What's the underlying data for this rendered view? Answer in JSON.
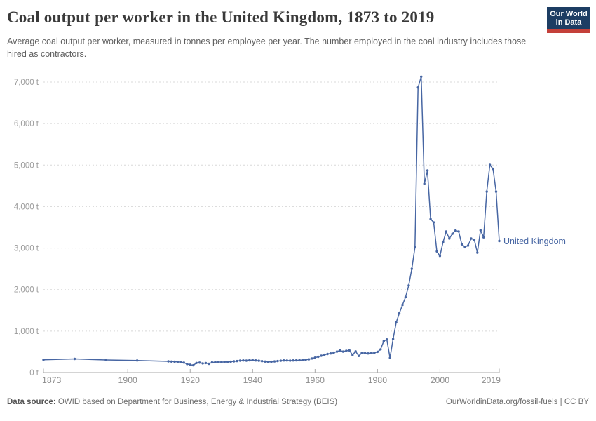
{
  "header": {
    "title": "Coal output per worker in the United Kingdom, 1873 to 2019",
    "subtitle": "Average coal output per worker, measured in tonnes per employee per year. The number employed in the coal industry includes those hired as contractors.",
    "logo": {
      "line1": "Our World",
      "line2": "in Data",
      "bg_color": "#1d3d63",
      "accent_color": "#c4403a"
    }
  },
  "footer": {
    "source_label": "Data source:",
    "source_text": " OWID based on Department for Business, Energy & Industrial Strategy (BEIS)",
    "link_text": "OurWorldinData.org/fossil-fuels",
    "license_text": " | CC BY"
  },
  "chart_data": {
    "type": "line",
    "title": "Coal output per worker in the United Kingdom, 1873 to 2019",
    "xlabel": "",
    "ylabel": "tonnes per employee per year",
    "unit": "t",
    "grid": "horizontal dashed",
    "legend_position": "end-of-line label",
    "xlim": [
      1873,
      2019
    ],
    "ylim": [
      0,
      7000
    ],
    "xticks": [
      {
        "value": 1873,
        "label": "1873"
      },
      {
        "value": 1900,
        "label": "1900"
      },
      {
        "value": 1920,
        "label": "1920"
      },
      {
        "value": 1940,
        "label": "1940"
      },
      {
        "value": 1960,
        "label": "1960"
      },
      {
        "value": 1980,
        "label": "1980"
      },
      {
        "value": 2000,
        "label": "2000"
      },
      {
        "value": 2019,
        "label": "2019"
      }
    ],
    "yticks": [
      {
        "value": 0,
        "label": "0 t"
      },
      {
        "value": 1000,
        "label": "1,000 t"
      },
      {
        "value": 2000,
        "label": "2,000 t"
      },
      {
        "value": 3000,
        "label": "3,000 t"
      },
      {
        "value": 4000,
        "label": "4,000 t"
      },
      {
        "value": 5000,
        "label": "5,000 t"
      },
      {
        "value": 6000,
        "label": "6,000 t"
      },
      {
        "value": 7000,
        "label": "7,000 t"
      }
    ],
    "series": [
      {
        "name": "United Kingdom",
        "color": "#4766a3",
        "points": [
          [
            1873,
            310
          ],
          [
            1883,
            330
          ],
          [
            1893,
            305
          ],
          [
            1903,
            290
          ],
          [
            1913,
            270
          ],
          [
            1914,
            265
          ],
          [
            1915,
            262
          ],
          [
            1916,
            258
          ],
          [
            1917,
            248
          ],
          [
            1918,
            240
          ],
          [
            1919,
            205
          ],
          [
            1920,
            190
          ],
          [
            1921,
            175
          ],
          [
            1922,
            232
          ],
          [
            1923,
            240
          ],
          [
            1924,
            222
          ],
          [
            1925,
            230
          ],
          [
            1926,
            212
          ],
          [
            1927,
            245
          ],
          [
            1928,
            250
          ],
          [
            1929,
            255
          ],
          [
            1930,
            252
          ],
          [
            1931,
            255
          ],
          [
            1932,
            258
          ],
          [
            1933,
            262
          ],
          [
            1934,
            270
          ],
          [
            1935,
            278
          ],
          [
            1936,
            287
          ],
          [
            1937,
            292
          ],
          [
            1938,
            288
          ],
          [
            1939,
            296
          ],
          [
            1940,
            300
          ],
          [
            1941,
            293
          ],
          [
            1942,
            285
          ],
          [
            1943,
            276
          ],
          [
            1944,
            265
          ],
          [
            1945,
            255
          ],
          [
            1946,
            260
          ],
          [
            1947,
            268
          ],
          [
            1948,
            278
          ],
          [
            1949,
            285
          ],
          [
            1950,
            292
          ],
          [
            1951,
            290
          ],
          [
            1952,
            288
          ],
          [
            1953,
            292
          ],
          [
            1954,
            295
          ],
          [
            1955,
            298
          ],
          [
            1956,
            303
          ],
          [
            1957,
            310
          ],
          [
            1958,
            320
          ],
          [
            1959,
            340
          ],
          [
            1960,
            360
          ],
          [
            1961,
            380
          ],
          [
            1962,
            405
          ],
          [
            1963,
            430
          ],
          [
            1964,
            448
          ],
          [
            1965,
            462
          ],
          [
            1966,
            480
          ],
          [
            1967,
            505
          ],
          [
            1968,
            535
          ],
          [
            1969,
            505
          ],
          [
            1970,
            525
          ],
          [
            1971,
            535
          ],
          [
            1972,
            425
          ],
          [
            1973,
            510
          ],
          [
            1974,
            400
          ],
          [
            1975,
            478
          ],
          [
            1976,
            468
          ],
          [
            1977,
            462
          ],
          [
            1978,
            470
          ],
          [
            1979,
            475
          ],
          [
            1980,
            500
          ],
          [
            1981,
            560
          ],
          [
            1982,
            760
          ],
          [
            1983,
            800
          ],
          [
            1984,
            355
          ],
          [
            1985,
            810
          ],
          [
            1986,
            1210
          ],
          [
            1987,
            1430
          ],
          [
            1988,
            1630
          ],
          [
            1989,
            1820
          ],
          [
            1990,
            2100
          ],
          [
            1991,
            2500
          ],
          [
            1992,
            3020
          ],
          [
            1993,
            6870
          ],
          [
            1994,
            7130
          ],
          [
            1995,
            4550
          ],
          [
            1996,
            4870
          ],
          [
            1997,
            3700
          ],
          [
            1998,
            3620
          ],
          [
            1999,
            2920
          ],
          [
            2000,
            2810
          ],
          [
            2001,
            3145
          ],
          [
            2002,
            3400
          ],
          [
            2003,
            3230
          ],
          [
            2004,
            3345
          ],
          [
            2005,
            3425
          ],
          [
            2006,
            3400
          ],
          [
            2007,
            3090
          ],
          [
            2008,
            3030
          ],
          [
            2009,
            3060
          ],
          [
            2010,
            3230
          ],
          [
            2011,
            3200
          ],
          [
            2012,
            2890
          ],
          [
            2013,
            3430
          ],
          [
            2014,
            3260
          ],
          [
            2015,
            4360
          ],
          [
            2016,
            5005
          ],
          [
            2017,
            4910
          ],
          [
            2018,
            4360
          ],
          [
            2019,
            3170
          ]
        ]
      }
    ]
  }
}
